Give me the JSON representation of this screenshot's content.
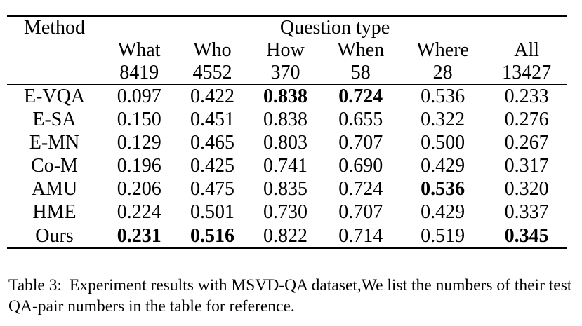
{
  "table": {
    "method_header": "Method",
    "group_header": "Question type",
    "columns": [
      {
        "type": "What",
        "count": "8419"
      },
      {
        "type": "Who",
        "count": "4552"
      },
      {
        "type": "How",
        "count": "370"
      },
      {
        "type": "When",
        "count": "58"
      },
      {
        "type": "Where",
        "count": "28"
      },
      {
        "type": "All",
        "count": "13427"
      }
    ],
    "rows": [
      {
        "method": "E-VQA",
        "values": [
          "0.097",
          "0.422",
          "0.838",
          "0.724",
          "0.536",
          "0.233"
        ],
        "bold": [
          false,
          false,
          true,
          true,
          false,
          false
        ]
      },
      {
        "method": "E-SA",
        "values": [
          "0.150",
          "0.451",
          "0.838",
          "0.655",
          "0.322",
          "0.276"
        ],
        "bold": [
          false,
          false,
          false,
          false,
          false,
          false
        ]
      },
      {
        "method": "E-MN",
        "values": [
          "0.129",
          "0.465",
          "0.803",
          "0.707",
          "0.500",
          "0.267"
        ],
        "bold": [
          false,
          false,
          false,
          false,
          false,
          false
        ]
      },
      {
        "method": "Co-M",
        "values": [
          "0.196",
          "0.425",
          "0.741",
          "0.690",
          "0.429",
          "0.317"
        ],
        "bold": [
          false,
          false,
          false,
          false,
          false,
          false
        ]
      },
      {
        "method": "AMU",
        "values": [
          "0.206",
          "0.475",
          "0.835",
          "0.724",
          "0.536",
          "0.320"
        ],
        "bold": [
          false,
          false,
          false,
          false,
          true,
          false
        ]
      },
      {
        "method": "HME",
        "values": [
          "0.224",
          "0.501",
          "0.730",
          "0.707",
          "0.429",
          "0.337"
        ],
        "bold": [
          false,
          false,
          false,
          false,
          false,
          false
        ]
      },
      {
        "method": "Ours",
        "values": [
          "0.231",
          "0.516",
          "0.822",
          "0.714",
          "0.519",
          "0.345"
        ],
        "bold": [
          true,
          true,
          false,
          false,
          false,
          true
        ]
      }
    ]
  },
  "caption": {
    "label": "Table 3:",
    "text": "Experiment results with MSVD-QA dataset,We list the numbers of their test QA-pair numbers in the table for reference."
  }
}
